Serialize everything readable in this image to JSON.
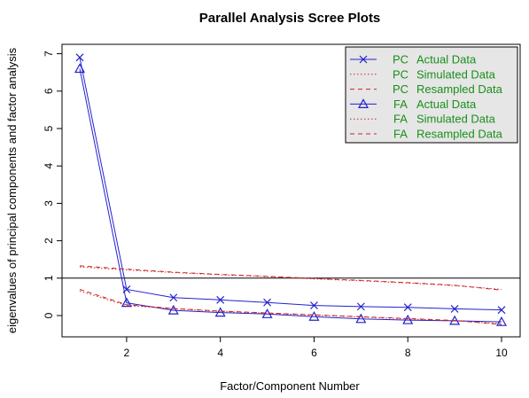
{
  "chart_data": {
    "type": "line",
    "title": "Parallel Analysis Scree Plots",
    "xlabel": "Factor/Component Number",
    "ylabel": "eigenvalues of principal components and factor analysis",
    "xlim": [
      1,
      10
    ],
    "ylim": [
      -0.5,
      7
    ],
    "xticks": [
      2,
      4,
      6,
      8,
      10
    ],
    "yticks": [
      0,
      1,
      2,
      3,
      4,
      5,
      6,
      7
    ],
    "reference_line": 1,
    "legend_position": "top-right",
    "colors": {
      "blue": "#2222cc",
      "red": "#cc2222",
      "legend_text": "#1a8f1a",
      "legend_bg": "#e6e6e6"
    },
    "x": [
      1,
      2,
      3,
      4,
      5,
      6,
      7,
      8,
      9,
      10
    ],
    "series": [
      {
        "name": "PC  Actual Data",
        "prefix": "PC",
        "label": "Actual Data",
        "color": "#2222cc",
        "style": "solid",
        "marker": "x",
        "values": [
          6.9,
          0.7,
          0.48,
          0.42,
          0.35,
          0.27,
          0.24,
          0.22,
          0.18,
          0.15
        ]
      },
      {
        "name": "PC  Simulated Data",
        "prefix": "PC",
        "label": "Simulated Data",
        "color": "#cc2222",
        "style": "dotted",
        "marker": "none",
        "values": [
          1.3,
          1.22,
          1.15,
          1.09,
          1.04,
          0.98,
          0.93,
          0.87,
          0.8,
          0.7
        ]
      },
      {
        "name": "PC  Resampled Data",
        "prefix": "PC",
        "label": "Resampled Data",
        "color": "#cc2222",
        "style": "dashed",
        "marker": "none",
        "values": [
          1.33,
          1.24,
          1.16,
          1.1,
          1.05,
          0.99,
          0.94,
          0.88,
          0.81,
          0.68
        ]
      },
      {
        "name": "FA  Actual Data",
        "prefix": "FA",
        "label": "Actual Data",
        "color": "#2222cc",
        "style": "solid",
        "marker": "triangle",
        "values": [
          6.6,
          0.34,
          0.14,
          0.08,
          0.04,
          -0.03,
          -0.09,
          -0.12,
          -0.14,
          -0.17
        ]
      },
      {
        "name": "FA  Simulated Data",
        "prefix": "FA",
        "label": "Simulated Data",
        "color": "#cc2222",
        "style": "dotted",
        "marker": "none",
        "values": [
          0.66,
          0.27,
          0.18,
          0.11,
          0.06,
          0.01,
          -0.04,
          -0.09,
          -0.14,
          -0.22
        ]
      },
      {
        "name": "FA  Resampled Data",
        "prefix": "FA",
        "label": "Resampled Data",
        "color": "#cc2222",
        "style": "dashed",
        "marker": "none",
        "values": [
          0.7,
          0.29,
          0.19,
          0.12,
          0.07,
          0.02,
          -0.03,
          -0.08,
          -0.13,
          -0.24
        ]
      }
    ]
  }
}
